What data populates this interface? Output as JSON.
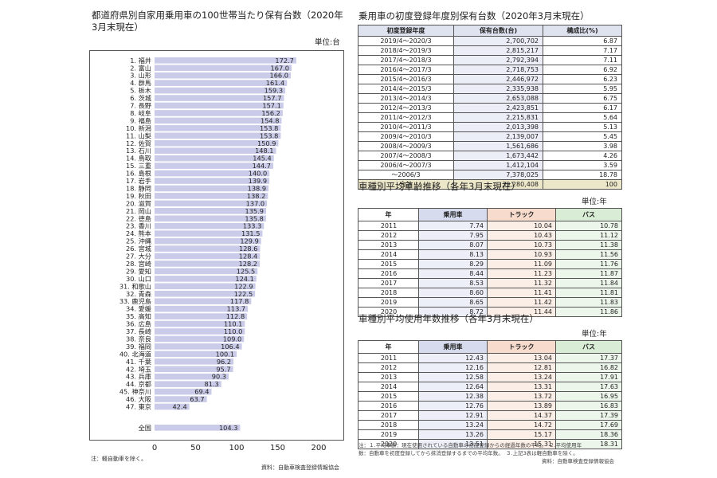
{
  "left_chart": {
    "title": "都道府県別自家用乗用車の100世帯当たり保有台数（2020年3月末現在）",
    "unit": "単位:台",
    "note": "注：軽自動車を除く。",
    "source": "資料：自動車検査登録情報協会"
  },
  "chart_data": {
    "type": "bar",
    "orientation": "horizontal",
    "categories": [
      "1. 福井",
      "2. 富山",
      "3. 山形",
      "4. 群馬",
      "5. 栃木",
      "6. 茨城",
      "7. 長野",
      "8. 岐阜",
      "9. 福島",
      "10. 新潟",
      "11. 山梨",
      "12. 佐賀",
      "13. 石川",
      "14. 鳥取",
      "15. 三重",
      "16. 島根",
      "17. 岩手",
      "18. 静岡",
      "19. 秋田",
      "20. 滋賀",
      "21. 岡山",
      "22. 徳島",
      "23. 香川",
      "24. 熊本",
      "25. 沖縄",
      "26. 宮城",
      "27. 大分",
      "28. 宮崎",
      "29. 愛知",
      "30. 山口",
      "31. 和歌山",
      "32. 青森",
      "33. 鹿児島",
      "34. 愛媛",
      "35. 高知",
      "36. 広島",
      "37. 長崎",
      "38. 奈良",
      "39. 福岡",
      "40. 北海道",
      "41. 千葉",
      "42. 埼玉",
      "43. 兵庫",
      "44. 京都",
      "45. 神奈川",
      "46. 大阪",
      "47. 東京"
    ],
    "values": [
      172.7,
      167.0,
      166.0,
      161.4,
      159.3,
      157.7,
      157.1,
      156.2,
      154.8,
      153.8,
      153.8,
      150.9,
      148.1,
      145.4,
      144.7,
      140.0,
      139.9,
      138.9,
      138.2,
      137.0,
      135.9,
      135.8,
      133.3,
      131.5,
      129.9,
      128.6,
      128.4,
      128.2,
      125.5,
      124.1,
      122.9,
      122.5,
      117.8,
      113.7,
      112.8,
      110.1,
      110.0,
      109.0,
      106.4,
      100.1,
      96.2,
      95.7,
      90.3,
      81.3,
      69.4,
      63.7,
      42.4
    ],
    "labels": [
      "172.7",
      "167.0",
      "166.0",
      "161.4",
      "159.3",
      "157.7",
      "157.1",
      "156.2",
      "154.8",
      "153.8",
      "153.8",
      "150.9",
      "148.1",
      "145.4",
      "144.7",
      "140.0",
      "139.9",
      "138.9",
      "138.2",
      "137.0",
      "135.9",
      "135.8",
      "133.3",
      "131.5",
      "129.9",
      "128.6",
      "128.4",
      "128.2",
      "125.5",
      "124.1",
      "122.9",
      "122.5",
      "117.8",
      "113.7",
      "112.8",
      "110.1",
      "110.0",
      "109.0",
      "106.4",
      "100.1",
      "96.2",
      "95.7",
      "90.3",
      "81.3",
      "69.4",
      "63.7",
      "42.4"
    ],
    "national": {
      "category": "全国",
      "value": 104.3,
      "label": "104.3"
    },
    "xlim": [
      0,
      200
    ],
    "xticks": [
      "0",
      "50",
      "100",
      "150",
      "200"
    ],
    "grid": false,
    "bar_color": "#c9cbe9"
  },
  "registration": {
    "title": "乗用車の初度登録年度別保有台数（2020年3月末現在）",
    "headers": [
      "初度登録年度",
      "保有台数(台)",
      "構成比(%)"
    ],
    "rows": [
      [
        "2019/4～2020/3",
        "2,700,702",
        "6.87"
      ],
      [
        "2018/4～2019/3",
        "2,815,217",
        "7.17"
      ],
      [
        "2017/4～2018/3",
        "2,792,394",
        "7.11"
      ],
      [
        "2016/4～2017/3",
        "2,718,753",
        "6.92"
      ],
      [
        "2015/4～2016/3",
        "2,446,972",
        "6.23"
      ],
      [
        "2014/4～2015/3",
        "2,335,938",
        "5.95"
      ],
      [
        "2013/4～2014/3",
        "2,653,088",
        "6.75"
      ],
      [
        "2012/4～2013/3",
        "2,423,851",
        "6.17"
      ],
      [
        "2011/4～2012/3",
        "2,215,831",
        "5.64"
      ],
      [
        "2010/4～2011/3",
        "2,013,398",
        "5.13"
      ],
      [
        "2009/4～2010/3",
        "2,139,007",
        "5.45"
      ],
      [
        "2008/4～2009/3",
        "1,561,686",
        "3.98"
      ],
      [
        "2007/4～2008/3",
        "1,673,442",
        "4.26"
      ],
      [
        "2006/4～2007/3",
        "1,412,104",
        "3.59"
      ],
      [
        "～2006/3",
        "7,378,025",
        "18.78"
      ]
    ],
    "total": [
      "合計",
      "39,280,408",
      "100"
    ]
  },
  "avg_age": {
    "title": "車種別平均車齢推移（各年3月末現在）",
    "unit": "単位:年",
    "headers": [
      "年",
      "乗用車",
      "トラック",
      "バス"
    ],
    "rows": [
      [
        "2011",
        "7.74",
        "10.04",
        "10.78"
      ],
      [
        "2012",
        "7.95",
        "10.43",
        "11.12"
      ],
      [
        "2013",
        "8.07",
        "10.73",
        "11.38"
      ],
      [
        "2014",
        "8.13",
        "10.93",
        "11.56"
      ],
      [
        "2015",
        "8.29",
        "11.09",
        "11.76"
      ],
      [
        "2016",
        "8.44",
        "11.23",
        "11.87"
      ],
      [
        "2017",
        "8.53",
        "11.32",
        "11.84"
      ],
      [
        "2018",
        "8.60",
        "11.41",
        "11.81"
      ],
      [
        "2019",
        "8.65",
        "11.42",
        "11.83"
      ],
      [
        "2020",
        "8.72",
        "11.44",
        "11.86"
      ]
    ]
  },
  "avg_life": {
    "title": "車種別平均使用年数推移（各年3月末現在）",
    "unit": "単位:年",
    "headers": [
      "年",
      "乗用車",
      "トラック",
      "バス"
    ],
    "rows": [
      [
        "2011",
        "12.43",
        "13.04",
        "17.37"
      ],
      [
        "2012",
        "12.16",
        "12.81",
        "16.82"
      ],
      [
        "2013",
        "12.58",
        "13.24",
        "17.91"
      ],
      [
        "2014",
        "12.64",
        "13.31",
        "17.63"
      ],
      [
        "2015",
        "12.38",
        "13.72",
        "16.95"
      ],
      [
        "2016",
        "12.76",
        "13.89",
        "16.83"
      ],
      [
        "2017",
        "12.91",
        "14.37",
        "17.39"
      ],
      [
        "2018",
        "13.24",
        "14.72",
        "17.69"
      ],
      [
        "2019",
        "13.26",
        "15.17",
        "18.36"
      ],
      [
        "2020",
        "13.51",
        "15.31",
        "18.31"
      ]
    ],
    "note1": "注：１.平均車齢：現在使用されている自動車の初度登録からの経過年数の平均。　２.平均使用年",
    "note2": "数：自動車を初度登録してから抹消登録するまでの平均年数。　３.上記3表は軽自動車を除く。",
    "source": "資料：自動車検査登録情報協会"
  }
}
